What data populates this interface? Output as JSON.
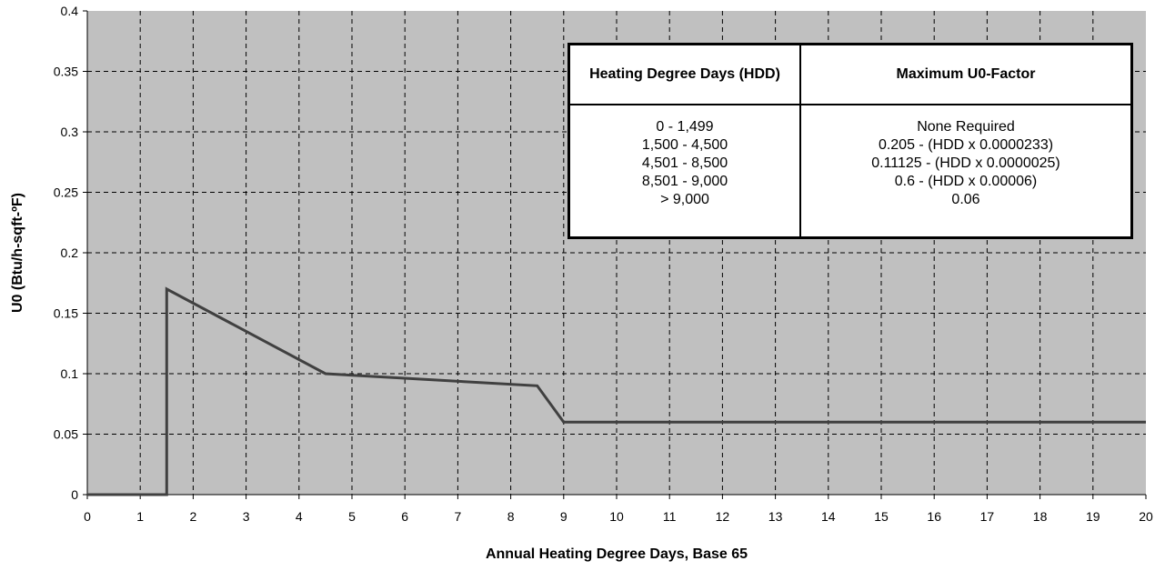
{
  "chart_data": {
    "type": "line",
    "title": "",
    "xlabel": "Annual Heating Degree Days, Base 65",
    "ylabel": "U0 (Btu/h-sqft-ºF)",
    "xlim": [
      0,
      20
    ],
    "ylim": [
      0,
      0.4
    ],
    "x_ticks": [
      "0",
      "1",
      "2",
      "3",
      "4",
      "5",
      "6",
      "7",
      "8",
      "9",
      "10",
      "11",
      "12",
      "13",
      "14",
      "15",
      "16",
      "17",
      "18",
      "19",
      "20"
    ],
    "y_ticks": [
      "0",
      "0.05",
      "0.1",
      "0.15",
      "0.2",
      "0.25",
      "0.3",
      "0.35",
      "0.4"
    ],
    "grid": true,
    "plot_background": "#c0c0c0",
    "line_color": "#404040",
    "series": [
      {
        "x": [
          0,
          1.5,
          1.5,
          4.5,
          8.5,
          9,
          20
        ],
        "y": [
          0,
          0,
          0.17,
          0.1,
          0.09,
          0.06,
          0.06
        ]
      }
    ]
  },
  "table": {
    "headers": [
      "Heating Degree Days (HDD)",
      "Maximum U0-Factor"
    ],
    "rows": [
      [
        "0 - 1,499",
        "None Required"
      ],
      [
        "1,500 - 4,500",
        "0.205 - (HDD x 0.0000233)"
      ],
      [
        "4,501 - 8,500",
        "0.11125 - (HDD x 0.0000025)"
      ],
      [
        "8,501 - 9,000",
        "0.6 - (HDD x 0.00006)"
      ],
      [
        "> 9,000",
        "0.06"
      ]
    ]
  }
}
